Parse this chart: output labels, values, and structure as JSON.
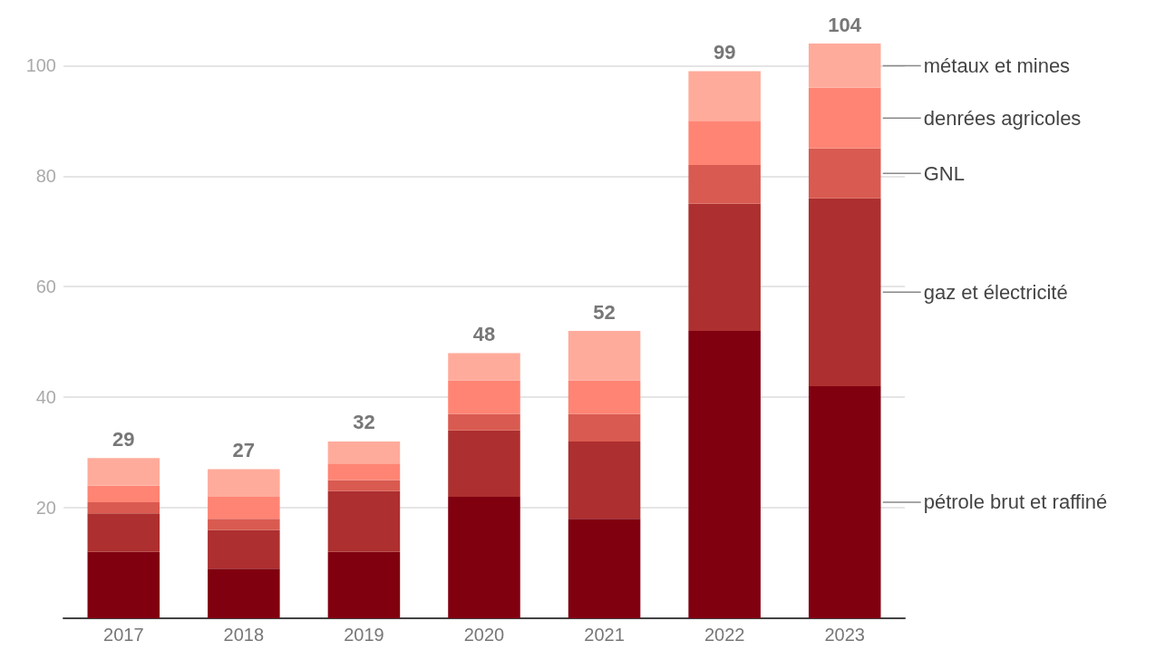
{
  "chart_data": {
    "type": "bar",
    "stacked": true,
    "categories": [
      "2017",
      "2018",
      "2019",
      "2020",
      "2021",
      "2022",
      "2023"
    ],
    "series": [
      {
        "name": "pétrole brut et raffiné",
        "color": "#800010",
        "values": [
          12,
          9,
          12,
          22,
          18,
          52,
          42
        ]
      },
      {
        "name": "gaz et électricité",
        "color": "#ad2f2f",
        "values": [
          7,
          7,
          11,
          12,
          14,
          23,
          34
        ]
      },
      {
        "name": "GNL",
        "color": "#d95a50",
        "values": [
          2,
          2,
          2,
          3,
          5,
          7,
          9
        ]
      },
      {
        "name": "denrées agricoles",
        "color": "#ff8474",
        "values": [
          3,
          4,
          3,
          6,
          6,
          8,
          11
        ]
      },
      {
        "name": "métaux et mines",
        "color": "#ffab9b",
        "values": [
          5,
          5,
          4,
          5,
          9,
          9,
          8
        ]
      }
    ],
    "totals": [
      "29",
      "27",
      "32",
      "48",
      "52",
      "99",
      "104"
    ],
    "ylim": [
      0,
      104
    ],
    "yticks": [
      {
        "value": 0,
        "label": null
      },
      20,
      40,
      60,
      80,
      100
    ],
    "grid": "y",
    "legend": "right"
  }
}
